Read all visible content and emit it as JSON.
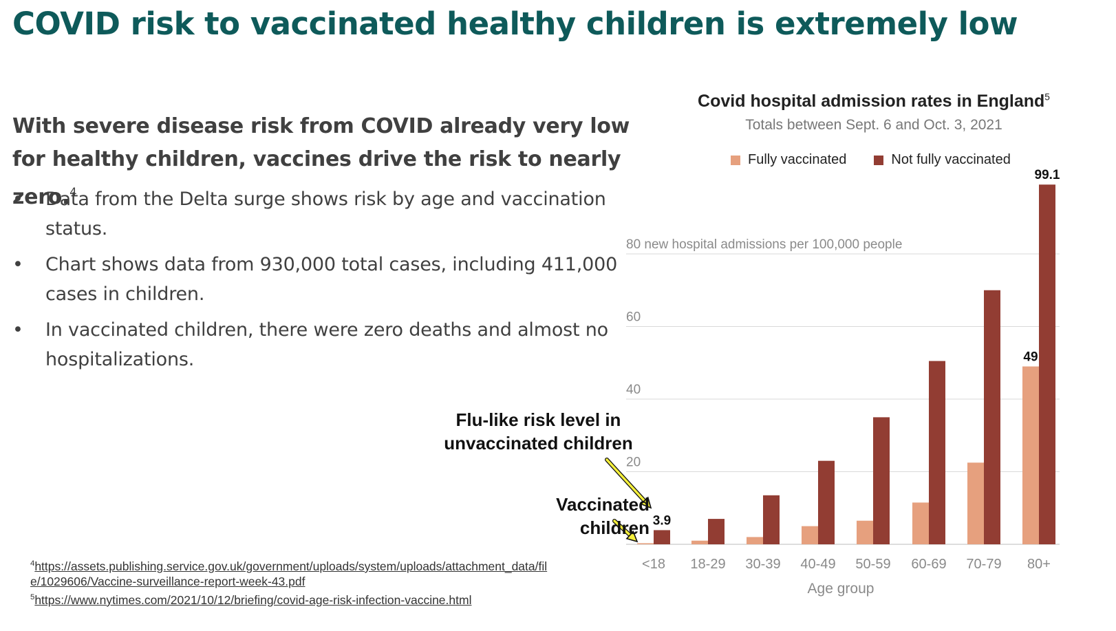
{
  "slide": {
    "title": "COVID risk to vaccinated healthy children is extremely low",
    "lead_text": "With severe disease risk from COVID already very low for healthy children, vaccines drive the risk to nearly zero.",
    "lead_ref": "4",
    "bullets": [
      "Data from the Delta surge shows risk by age and vaccination status.",
      "Chart shows data from 930,000 total cases, including 411,000 cases in children.",
      "In vaccinated children, there were zero deaths and almost no hospitalizations."
    ]
  },
  "annotations": {
    "flu_like": "Flu-like risk level in unvaccinated children",
    "vaccinated_children": "Vaccinated children"
  },
  "footnotes": {
    "f4_num": "4",
    "f4_url": "https://assets.publishing.service.gov.uk/government/uploads/system/uploads/attachment_data/file/1029606/Vaccine-surveillance-report-week-43.pdf",
    "f5_num": "5",
    "f5_url": "https://www.nytimes.com/2021/10/12/briefing/covid-age-risk-infection-vaccine.html"
  },
  "chart_data": {
    "type": "bar",
    "title": "Covid hospital admission rates in England",
    "title_ref": "5",
    "subtitle": "Totals between Sept. 6 and Oct. 3, 2021",
    "xlabel": "Age group",
    "ylabel": "80 new hospital admissions per 100,000 people",
    "categories": [
      "<18",
      "18-29",
      "30-39",
      "40-49",
      "50-59",
      "60-69",
      "70-79",
      "80+"
    ],
    "series": [
      {
        "name": "Fully vaccinated",
        "color": "#e6a07e",
        "values": [
          0.3,
          1.0,
          2.0,
          5.0,
          6.5,
          11.5,
          22.5,
          49
        ]
      },
      {
        "name": "Not fully vaccinated",
        "color": "#923d33",
        "values": [
          3.9,
          7.0,
          13.5,
          23.0,
          35.0,
          50.5,
          70.0,
          99.1
        ]
      }
    ],
    "yticks": [
      20,
      40,
      60,
      80
    ],
    "ylim": [
      0,
      100
    ],
    "grid": true,
    "legend_position": "top",
    "data_labels": [
      {
        "category": "<18",
        "series": "Not fully vaccinated",
        "text": "3.9"
      },
      {
        "category": "80+",
        "series": "Fully vaccinated",
        "text": "49"
      },
      {
        "category": "80+",
        "series": "Not fully vaccinated",
        "text": "99.1"
      }
    ]
  }
}
